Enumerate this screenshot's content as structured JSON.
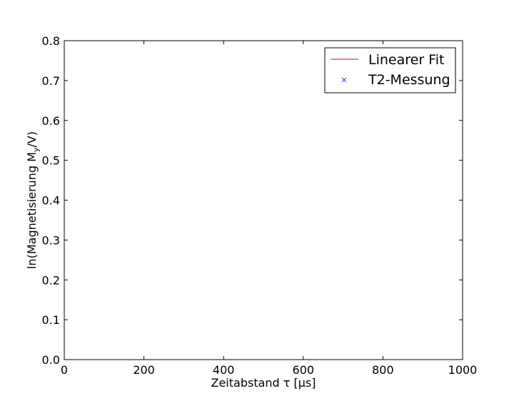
{
  "chart_data": {
    "type": "line",
    "title": "",
    "xlabel": "Zeitabstand τ [μs]",
    "ylabel": "ln(Magnetisierung M_y/V)",
    "xlim": [
      0,
      1000
    ],
    "ylim": [
      0.0,
      0.8
    ],
    "x_ticks": [
      "0",
      "200",
      "400",
      "600",
      "800",
      "1000"
    ],
    "y_ticks": [
      "0.0",
      "0.1",
      "0.2",
      "0.3",
      "0.4",
      "0.5",
      "0.6",
      "0.7",
      "0.8"
    ],
    "grid": false,
    "legend_position": "top-right",
    "series": [
      {
        "name": "Linearer Fit",
        "style": "line",
        "color": "#b22222",
        "x": [],
        "y": []
      },
      {
        "name": "T2-Messung",
        "style": "marker-x",
        "color": "#3333cc",
        "x": [],
        "y": []
      }
    ]
  }
}
